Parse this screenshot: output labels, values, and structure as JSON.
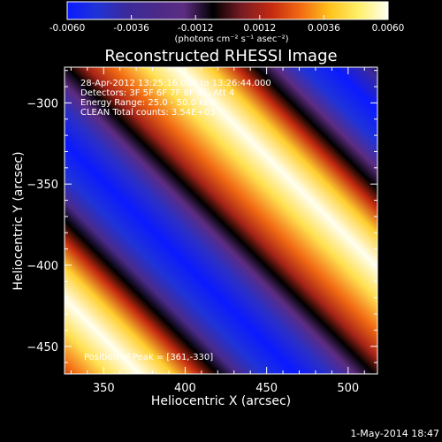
{
  "chart_data": {
    "type": "heatmap",
    "title": "Reconstructed RHESSI Image",
    "xlabel": "Heliocentric X (arcsec)",
    "ylabel": "Heliocentric Y (arcsec)",
    "xlim": [
      326,
      518
    ],
    "ylim": [
      -467,
      -278
    ],
    "x_ticks": [
      350,
      400,
      450,
      500
    ],
    "y_ticks": [
      -300,
      -350,
      -400,
      -450
    ],
    "colorbar": {
      "range": [
        -0.006,
        0.006
      ],
      "ticks": [
        "-0.0060",
        "-0.0036",
        "-0.0012",
        "0.0012",
        "0.0036",
        "0.0060"
      ],
      "unit_label": "(photons cm⁻² s⁻¹ asec⁻²)",
      "colormap": [
        "#0a1aff",
        "#2033d8",
        "#3a2a9c",
        "#4a2a8a",
        "#5c2c82",
        "#000000",
        "#7a1c24",
        "#c42a10",
        "#f26a12",
        "#ffc21c",
        "#fff06a",
        "#fffff0"
      ]
    },
    "stripes": {
      "direction": "diagonal, from upper-left to lower-right",
      "bright_band_centers_arcsec_offset": [
        -84,
        5,
        95
      ],
      "period_along_normal_arcsec": 90,
      "peak": [
        361,
        -330
      ]
    },
    "annotations": {
      "time": "28-Apr-2012 13:25:16.000 to 13:26:44.000",
      "detectors": "Detectors: 3F 5F 6F 7F 8F 9F, Att 4",
      "energy": "Energy Range: 25.0 - 50.0 keV",
      "method": "CLEAN   Total counts: 3.54E+03",
      "peak": "Position of Peak = [361,-330]"
    }
  },
  "footer": {
    "timestamp": "1-May-2014 18:47"
  }
}
